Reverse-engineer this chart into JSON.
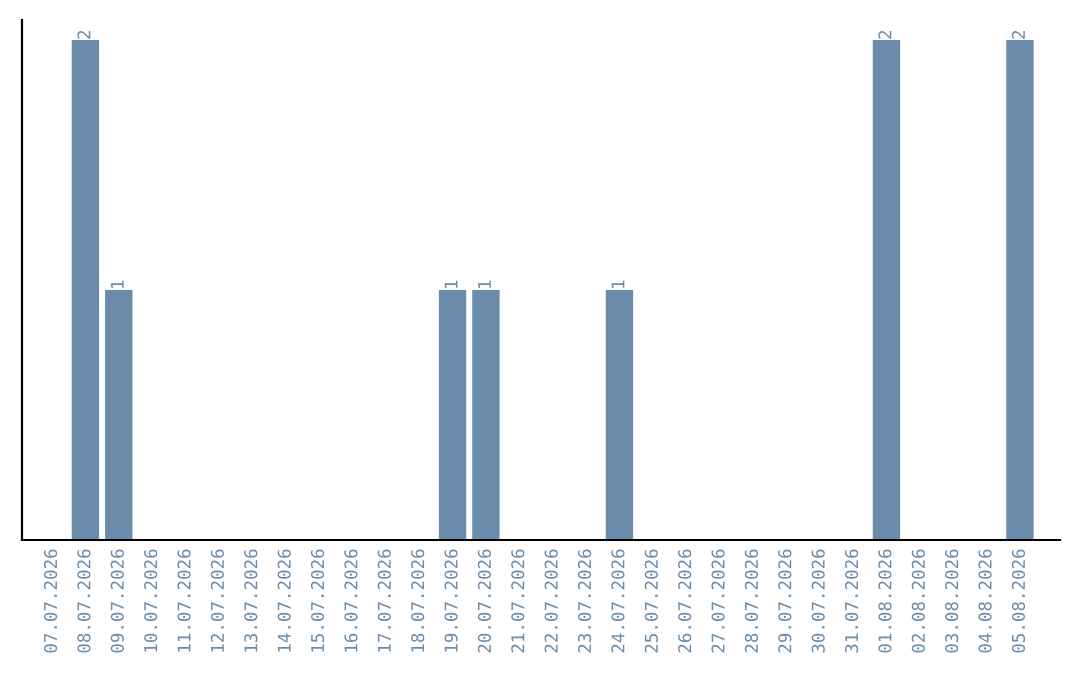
{
  "chart_data": {
    "type": "bar",
    "categories": [
      "07.07.2026",
      "08.07.2026",
      "09.07.2026",
      "10.07.2026",
      "11.07.2026",
      "12.07.2026",
      "13.07.2026",
      "14.07.2026",
      "15.07.2026",
      "16.07.2026",
      "17.07.2026",
      "18.07.2026",
      "19.07.2026",
      "20.07.2026",
      "21.07.2026",
      "22.07.2026",
      "23.07.2026",
      "24.07.2026",
      "25.07.2026",
      "26.07.2026",
      "27.07.2026",
      "28.07.2026",
      "29.07.2026",
      "30.07.2026",
      "31.07.2026",
      "01.08.2026",
      "02.08.2026",
      "03.08.2026",
      "04.08.2026",
      "05.08.2026"
    ],
    "values": [
      0,
      2,
      1,
      0,
      0,
      0,
      0,
      0,
      0,
      0,
      0,
      0,
      1,
      1,
      0,
      0,
      0,
      1,
      0,
      0,
      0,
      0,
      0,
      0,
      0,
      2,
      0,
      0,
      0,
      2
    ],
    "color": "#6a8caa",
    "value_labels": [
      null,
      "2",
      "1",
      null,
      null,
      null,
      null,
      null,
      null,
      null,
      null,
      null,
      "1",
      "1",
      null,
      null,
      null,
      "1",
      null,
      null,
      null,
      null,
      null,
      null,
      null,
      "2",
      null,
      null,
      null,
      "2"
    ],
    "tick_labels": "x"
  }
}
